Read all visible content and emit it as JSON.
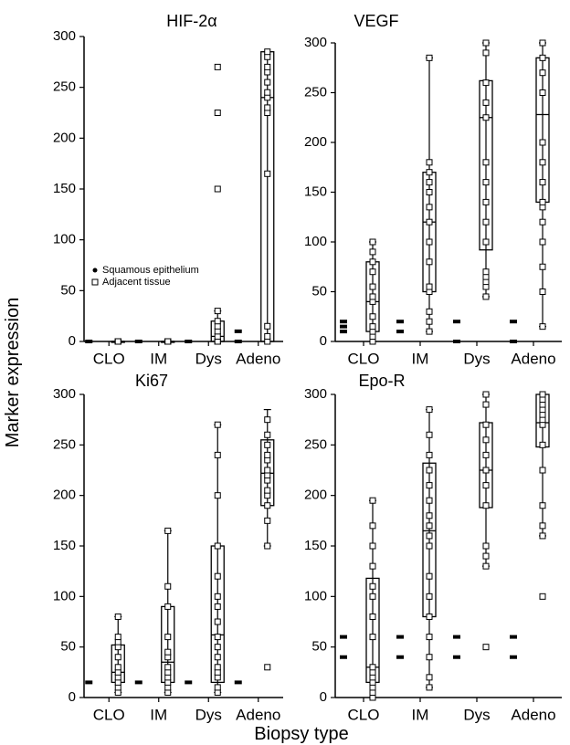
{
  "figure": {
    "ylabel": "Marker expression",
    "xlabel": "Biopsy type"
  },
  "legend": {
    "squamous": "Squamous epithelium",
    "adjacent": "Adjacent tissue"
  },
  "chart_data": [
    {
      "type": "box",
      "title": "HIF-2α",
      "categories": [
        "CLO",
        "IM",
        "Dys",
        "Adeno"
      ],
      "ylim": [
        0,
        300
      ],
      "yticks": [
        "0",
        "50",
        "100",
        "150",
        "200",
        "250",
        "300"
      ],
      "legend": true,
      "squamous": [
        [
          0
        ],
        [
          0
        ],
        [
          0
        ],
        [
          10,
          0
        ]
      ],
      "adjacent": [
        {
          "points": [
            0,
            0,
            0,
            0,
            0
          ],
          "box": [
            0,
            0
          ],
          "median": 0,
          "whisker": [
            0,
            0
          ]
        },
        {
          "points": [
            0,
            0,
            0,
            0,
            0
          ],
          "box": [
            0,
            0
          ],
          "median": 0,
          "whisker": [
            0,
            0
          ]
        },
        {
          "points": [
            0,
            0,
            0,
            5,
            10,
            15,
            20,
            30,
            150,
            225,
            270
          ],
          "box": [
            0,
            20
          ],
          "median": 5,
          "whisker": [
            0,
            30
          ]
        },
        {
          "points": [
            0,
            5,
            15,
            165,
            225,
            230,
            240,
            245,
            255,
            265,
            270,
            280,
            285
          ],
          "box": [
            0,
            285
          ],
          "median": 240,
          "whisker": [
            0,
            285
          ]
        }
      ]
    },
    {
      "type": "box",
      "title": "VEGF",
      "categories": [
        "CLO",
        "IM",
        "Dys",
        "Adeno"
      ],
      "ylim": [
        0,
        300
      ],
      "yticks": [
        "0",
        "50",
        "100",
        "150",
        "200",
        "250",
        "300"
      ],
      "legend": false,
      "squamous": [
        [
          20,
          15,
          10
        ],
        [
          20,
          10
        ],
        [
          20,
          0
        ],
        [
          20,
          0
        ]
      ],
      "adjacent": [
        {
          "points": [
            0,
            5,
            10,
            15,
            25,
            40,
            45,
            55,
            70,
            80,
            90,
            100
          ],
          "box": [
            10,
            80
          ],
          "median": 40,
          "whisker": [
            0,
            100
          ]
        },
        {
          "points": [
            10,
            20,
            30,
            50,
            55,
            80,
            100,
            120,
            135,
            150,
            160,
            170,
            180,
            285
          ],
          "box": [
            50,
            170
          ],
          "median": 120,
          "whisker": [
            10,
            285
          ]
        },
        {
          "points": [
            45,
            55,
            60,
            65,
            70,
            100,
            120,
            140,
            160,
            180,
            225,
            240,
            260,
            290,
            300
          ],
          "box": [
            92,
            262
          ],
          "median": 225,
          "whisker": [
            45,
            300
          ]
        },
        {
          "points": [
            15,
            50,
            75,
            100,
            120,
            135,
            140,
            160,
            180,
            200,
            250,
            270,
            285,
            300
          ],
          "box": [
            140,
            285
          ],
          "median": 228,
          "whisker": [
            15,
            300
          ]
        }
      ]
    },
    {
      "type": "box",
      "title": "Ki67",
      "categories": [
        "CLO",
        "IM",
        "Dys",
        "Adeno"
      ],
      "ylim": [
        0,
        300
      ],
      "yticks": [
        "0",
        "50",
        "100",
        "150",
        "200",
        "250",
        "300"
      ],
      "legend": false,
      "squamous": [
        [
          15
        ],
        [
          15
        ],
        [
          15
        ],
        [
          15
        ]
      ],
      "adjacent": [
        {
          "points": [
            5,
            10,
            15,
            20,
            25,
            30,
            40,
            50,
            55,
            60,
            80
          ],
          "box": [
            15,
            52
          ],
          "median": 25,
          "whisker": [
            5,
            80
          ]
        },
        {
          "points": [
            5,
            10,
            15,
            20,
            25,
            30,
            40,
            45,
            60,
            90,
            110,
            165
          ],
          "box": [
            15,
            90
          ],
          "median": 35,
          "whisker": [
            5,
            165
          ]
        },
        {
          "points": [
            5,
            10,
            20,
            25,
            30,
            40,
            50,
            60,
            75,
            90,
            100,
            120,
            150,
            200,
            240,
            270
          ],
          "box": [
            15,
            150
          ],
          "median": 62,
          "whisker": [
            5,
            270
          ]
        },
        {
          "points": [
            30,
            150,
            175,
            190,
            200,
            205,
            215,
            220,
            225,
            235,
            240,
            250,
            260,
            275
          ],
          "box": [
            190,
            255
          ],
          "median": 222,
          "whisker": [
            150,
            285
          ]
        }
      ]
    },
    {
      "type": "box",
      "title": "Epo-R",
      "categories": [
        "CLO",
        "IM",
        "Dys",
        "Adeno"
      ],
      "ylim": [
        0,
        300
      ],
      "yticks": [
        "0",
        "50",
        "100",
        "150",
        "200",
        "250",
        "300"
      ],
      "legend": false,
      "squamous": [
        [
          60,
          40
        ],
        [
          60,
          40
        ],
        [
          60,
          40
        ],
        [
          60,
          40
        ]
      ],
      "adjacent": [
        {
          "points": [
            0,
            5,
            10,
            15,
            20,
            25,
            30,
            60,
            80,
            100,
            110,
            130,
            150,
            170,
            195
          ],
          "box": [
            15,
            118
          ],
          "median": 30,
          "whisker": [
            0,
            195
          ]
        },
        {
          "points": [
            10,
            20,
            40,
            60,
            80,
            100,
            120,
            150,
            160,
            170,
            180,
            195,
            210,
            225,
            240,
            260,
            285
          ],
          "box": [
            80,
            232
          ],
          "median": 165,
          "whisker": [
            10,
            285
          ]
        },
        {
          "points": [
            50,
            130,
            140,
            150,
            190,
            210,
            225,
            240,
            255,
            270,
            290,
            300
          ],
          "box": [
            188,
            272
          ],
          "median": 225,
          "whisker": [
            130,
            300
          ]
        },
        {
          "points": [
            100,
            160,
            170,
            190,
            225,
            250,
            270,
            275,
            280,
            285,
            290,
            295,
            300
          ],
          "box": [
            248,
            300
          ],
          "median": 272,
          "whisker": [
            160,
            300
          ]
        }
      ]
    }
  ]
}
